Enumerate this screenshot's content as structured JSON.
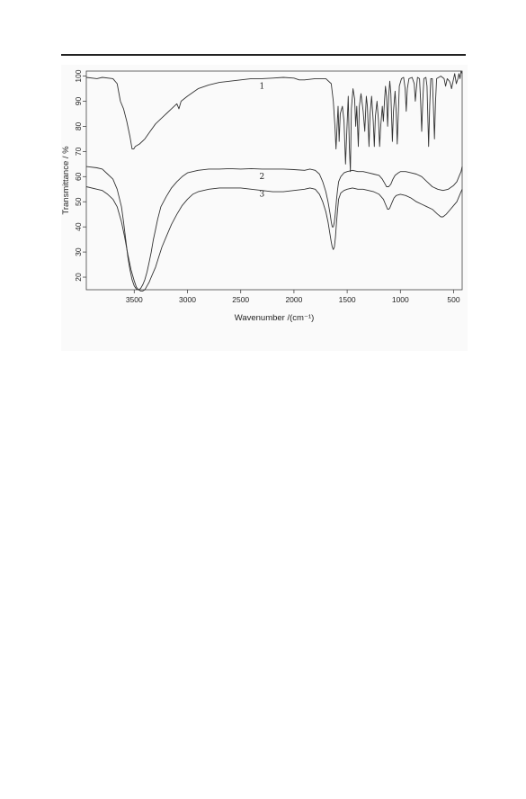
{
  "chart_data": {
    "type": "line",
    "xlabel": "Wavenumber /(cm⁻¹)",
    "ylabel": "Transmittance / %",
    "xlim": [
      3950,
      420
    ],
    "ylim": [
      15,
      102
    ],
    "x_reversed": true,
    "grid": false,
    "x_ticks": [
      3500,
      3000,
      2500,
      2000,
      1500,
      1000,
      500
    ],
    "y_ticks": [
      20,
      30,
      40,
      50,
      60,
      70,
      80,
      90,
      100
    ],
    "series": [
      {
        "name": "1",
        "label_at": [
          2300,
          95
        ],
        "points": [
          [
            3950,
            99.5
          ],
          [
            3850,
            99
          ],
          [
            3800,
            99.5
          ],
          [
            3700,
            99
          ],
          [
            3660,
            97
          ],
          [
            3630,
            90
          ],
          [
            3600,
            87
          ],
          [
            3570,
            82
          ],
          [
            3540,
            76
          ],
          [
            3520,
            71
          ],
          [
            3505,
            71
          ],
          [
            3490,
            72
          ],
          [
            3450,
            73
          ],
          [
            3400,
            75
          ],
          [
            3350,
            78
          ],
          [
            3300,
            81
          ],
          [
            3250,
            83
          ],
          [
            3200,
            85
          ],
          [
            3150,
            87
          ],
          [
            3100,
            89
          ],
          [
            3080,
            87
          ],
          [
            3060,
            90
          ],
          [
            3000,
            92
          ],
          [
            2900,
            95
          ],
          [
            2800,
            96.5
          ],
          [
            2700,
            97.5
          ],
          [
            2600,
            98
          ],
          [
            2500,
            98.5
          ],
          [
            2400,
            99
          ],
          [
            2300,
            99
          ],
          [
            2200,
            99.2
          ],
          [
            2100,
            99.5
          ],
          [
            2000,
            99.2
          ],
          [
            1950,
            98.5
          ],
          [
            1900,
            98.5
          ],
          [
            1800,
            99
          ],
          [
            1700,
            99
          ],
          [
            1650,
            97
          ],
          [
            1630,
            90
          ],
          [
            1615,
            80
          ],
          [
            1605,
            71
          ],
          [
            1595,
            80
          ],
          [
            1585,
            88
          ],
          [
            1575,
            74
          ],
          [
            1565,
            85
          ],
          [
            1545,
            88
          ],
          [
            1530,
            82
          ],
          [
            1515,
            65
          ],
          [
            1505,
            76
          ],
          [
            1490,
            92
          ],
          [
            1480,
            72
          ],
          [
            1470,
            62
          ],
          [
            1460,
            87
          ],
          [
            1445,
            95
          ],
          [
            1430,
            91
          ],
          [
            1420,
            80
          ],
          [
            1410,
            88
          ],
          [
            1395,
            72
          ],
          [
            1385,
            88
          ],
          [
            1370,
            93
          ],
          [
            1350,
            86
          ],
          [
            1335,
            78
          ],
          [
            1320,
            92
          ],
          [
            1310,
            88
          ],
          [
            1295,
            72
          ],
          [
            1285,
            85
          ],
          [
            1270,
            92
          ],
          [
            1255,
            82
          ],
          [
            1245,
            72
          ],
          [
            1235,
            84
          ],
          [
            1220,
            90
          ],
          [
            1205,
            82
          ],
          [
            1195,
            72
          ],
          [
            1185,
            80
          ],
          [
            1170,
            88
          ],
          [
            1160,
            82
          ],
          [
            1150,
            90
          ],
          [
            1140,
            96
          ],
          [
            1130,
            92
          ],
          [
            1120,
            80
          ],
          [
            1110,
            92
          ],
          [
            1100,
            98
          ],
          [
            1090,
            93
          ],
          [
            1075,
            74
          ],
          [
            1065,
            86
          ],
          [
            1050,
            94
          ],
          [
            1040,
            86
          ],
          [
            1030,
            73
          ],
          [
            1020,
            85
          ],
          [
            1010,
            96
          ],
          [
            990,
            99
          ],
          [
            970,
            99.5
          ],
          [
            955,
            95
          ],
          [
            945,
            86
          ],
          [
            935,
            95
          ],
          [
            920,
            99
          ],
          [
            890,
            99.5
          ],
          [
            870,
            97
          ],
          [
            860,
            90
          ],
          [
            850,
            95
          ],
          [
            840,
            99.5
          ],
          [
            820,
            99
          ],
          [
            810,
            90
          ],
          [
            800,
            78
          ],
          [
            790,
            90
          ],
          [
            780,
            99
          ],
          [
            760,
            99.5
          ],
          [
            750,
            96
          ],
          [
            745,
            88
          ],
          [
            735,
            72
          ],
          [
            725,
            88
          ],
          [
            715,
            99
          ],
          [
            700,
            99
          ],
          [
            690,
            88
          ],
          [
            680,
            75
          ],
          [
            670,
            90
          ],
          [
            660,
            99
          ],
          [
            640,
            99.5
          ],
          [
            620,
            100
          ],
          [
            590,
            99
          ],
          [
            575,
            96
          ],
          [
            560,
            99
          ],
          [
            540,
            98
          ],
          [
            530,
            97
          ],
          [
            520,
            95
          ],
          [
            505,
            98
          ],
          [
            490,
            101
          ],
          [
            475,
            97
          ],
          [
            460,
            99
          ],
          [
            450,
            101
          ],
          [
            440,
            99
          ],
          [
            430,
            102
          ],
          [
            420,
            101
          ]
        ]
      },
      {
        "name": "2",
        "label_at": [
          2300,
          59
        ],
        "points": [
          [
            3950,
            64
          ],
          [
            3850,
            63.5
          ],
          [
            3800,
            63
          ],
          [
            3750,
            61
          ],
          [
            3700,
            59
          ],
          [
            3660,
            55
          ],
          [
            3620,
            48
          ],
          [
            3600,
            42
          ],
          [
            3580,
            35
          ],
          [
            3560,
            28
          ],
          [
            3540,
            23
          ],
          [
            3520,
            19
          ],
          [
            3500,
            16.5
          ],
          [
            3480,
            15.2
          ],
          [
            3460,
            15
          ],
          [
            3440,
            15.5
          ],
          [
            3420,
            17
          ],
          [
            3400,
            19
          ],
          [
            3380,
            22
          ],
          [
            3360,
            26
          ],
          [
            3340,
            30
          ],
          [
            3320,
            35
          ],
          [
            3300,
            39
          ],
          [
            3280,
            43
          ],
          [
            3250,
            48
          ],
          [
            3200,
            52
          ],
          [
            3150,
            55.5
          ],
          [
            3100,
            58
          ],
          [
            3050,
            60
          ],
          [
            3000,
            61.5
          ],
          [
            2900,
            62.5
          ],
          [
            2800,
            63
          ],
          [
            2700,
            63
          ],
          [
            2600,
            63.2
          ],
          [
            2500,
            63
          ],
          [
            2400,
            63.2
          ],
          [
            2300,
            63
          ],
          [
            2200,
            63
          ],
          [
            2100,
            63
          ],
          [
            2000,
            62.8
          ],
          [
            1900,
            62.5
          ],
          [
            1850,
            63
          ],
          [
            1800,
            62.5
          ],
          [
            1760,
            61
          ],
          [
            1730,
            58
          ],
          [
            1700,
            54
          ],
          [
            1680,
            50
          ],
          [
            1660,
            45
          ],
          [
            1650,
            42
          ],
          [
            1640,
            40
          ],
          [
            1630,
            40
          ],
          [
            1620,
            42
          ],
          [
            1610,
            46
          ],
          [
            1600,
            51
          ],
          [
            1590,
            55
          ],
          [
            1580,
            58
          ],
          [
            1560,
            60
          ],
          [
            1530,
            61.5
          ],
          [
            1500,
            62
          ],
          [
            1450,
            62.5
          ],
          [
            1400,
            62
          ],
          [
            1350,
            62
          ],
          [
            1300,
            61.5
          ],
          [
            1250,
            61
          ],
          [
            1200,
            60.5
          ],
          [
            1170,
            59
          ],
          [
            1150,
            57.5
          ],
          [
            1130,
            56
          ],
          [
            1110,
            56
          ],
          [
            1090,
            57
          ],
          [
            1070,
            59
          ],
          [
            1050,
            60.5
          ],
          [
            1020,
            61.5
          ],
          [
            1000,
            62
          ],
          [
            950,
            62
          ],
          [
            900,
            61.5
          ],
          [
            850,
            61
          ],
          [
            800,
            60
          ],
          [
            750,
            58
          ],
          [
            700,
            56
          ],
          [
            650,
            55
          ],
          [
            600,
            54.5
          ],
          [
            550,
            55
          ],
          [
            500,
            56.5
          ],
          [
            470,
            58
          ],
          [
            450,
            60
          ],
          [
            430,
            62
          ],
          [
            420,
            64
          ]
        ]
      },
      {
        "name": "3",
        "label_at": [
          2300,
          52
        ],
        "points": [
          [
            3950,
            56
          ],
          [
            3850,
            55
          ],
          [
            3800,
            54.5
          ],
          [
            3750,
            53
          ],
          [
            3700,
            51
          ],
          [
            3660,
            48
          ],
          [
            3620,
            42
          ],
          [
            3590,
            36
          ],
          [
            3560,
            29
          ],
          [
            3530,
            23
          ],
          [
            3500,
            18.5
          ],
          [
            3480,
            16
          ],
          [
            3460,
            15
          ],
          [
            3440,
            14.5
          ],
          [
            3420,
            14.5
          ],
          [
            3400,
            15
          ],
          [
            3380,
            16.5
          ],
          [
            3360,
            18
          ],
          [
            3340,
            20
          ],
          [
            3320,
            22
          ],
          [
            3300,
            24
          ],
          [
            3270,
            28
          ],
          [
            3240,
            32
          ],
          [
            3200,
            36
          ],
          [
            3150,
            41
          ],
          [
            3100,
            45
          ],
          [
            3050,
            48.5
          ],
          [
            3000,
            51
          ],
          [
            2950,
            53
          ],
          [
            2900,
            54
          ],
          [
            2800,
            55
          ],
          [
            2700,
            55.5
          ],
          [
            2600,
            55.5
          ],
          [
            2500,
            55.5
          ],
          [
            2400,
            55
          ],
          [
            2300,
            54.5
          ],
          [
            2200,
            54
          ],
          [
            2100,
            54
          ],
          [
            2000,
            54.5
          ],
          [
            1900,
            55
          ],
          [
            1850,
            55.5
          ],
          [
            1800,
            55
          ],
          [
            1760,
            53
          ],
          [
            1730,
            50
          ],
          [
            1700,
            46
          ],
          [
            1680,
            42
          ],
          [
            1665,
            38
          ],
          [
            1650,
            34
          ],
          [
            1640,
            32
          ],
          [
            1630,
            31
          ],
          [
            1620,
            32
          ],
          [
            1610,
            36
          ],
          [
            1600,
            42
          ],
          [
            1590,
            47
          ],
          [
            1580,
            51
          ],
          [
            1560,
            53.5
          ],
          [
            1530,
            54.5
          ],
          [
            1500,
            55
          ],
          [
            1450,
            55.5
          ],
          [
            1400,
            55
          ],
          [
            1350,
            55
          ],
          [
            1300,
            54.5
          ],
          [
            1250,
            54
          ],
          [
            1200,
            53
          ],
          [
            1160,
            51
          ],
          [
            1140,
            49
          ],
          [
            1120,
            47
          ],
          [
            1110,
            47
          ],
          [
            1100,
            47.5
          ],
          [
            1080,
            49.5
          ],
          [
            1060,
            51.5
          ],
          [
            1040,
            52.5
          ],
          [
            1000,
            53
          ],
          [
            950,
            52.5
          ],
          [
            900,
            51.5
          ],
          [
            850,
            50
          ],
          [
            800,
            49
          ],
          [
            750,
            48
          ],
          [
            700,
            47
          ],
          [
            650,
            45
          ],
          [
            620,
            44
          ],
          [
            600,
            44
          ],
          [
            570,
            45
          ],
          [
            540,
            46.5
          ],
          [
            500,
            48.5
          ],
          [
            470,
            50
          ],
          [
            450,
            52
          ],
          [
            430,
            54
          ],
          [
            420,
            55
          ]
        ]
      }
    ]
  }
}
